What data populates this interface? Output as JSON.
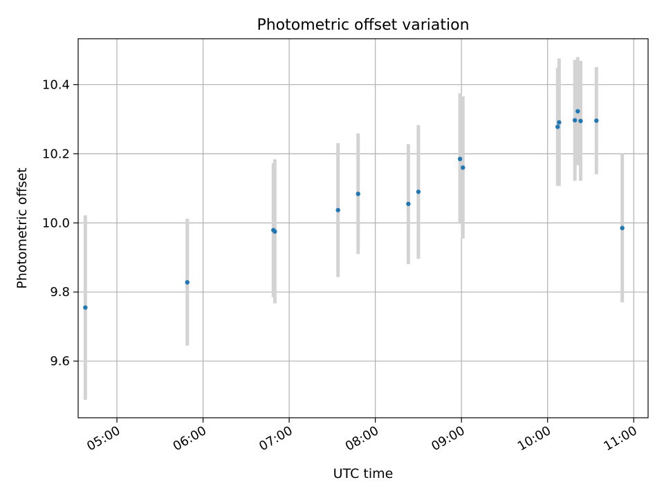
{
  "chart_data": {
    "type": "scatter",
    "title": "Photometric offset variation",
    "xlabel": "UTC time",
    "ylabel": "Photometric offset",
    "x_tick_labels": [
      "05:00",
      "06:00",
      "07:00",
      "08:00",
      "09:00",
      "10:00",
      "11:00"
    ],
    "y_tick_labels": [
      "9.6",
      "9.8",
      "10.0",
      "10.2",
      "10.4"
    ],
    "xlim": [
      "04:33",
      "11:10"
    ],
    "ylim": [
      9.436,
      10.533
    ],
    "grid": true,
    "error_bars": true,
    "points": [
      {
        "x": "04:38",
        "y": 9.755,
        "y_low": 9.488,
        "y_high": 10.022
      },
      {
        "x": "05:49",
        "y": 9.828,
        "y_low": 9.645,
        "y_high": 10.012
      },
      {
        "x": "06:49",
        "y": 9.979,
        "y_low": 9.785,
        "y_high": 10.173
      },
      {
        "x": "06:50",
        "y": 9.975,
        "y_low": 9.767,
        "y_high": 10.184
      },
      {
        "x": "07:34",
        "y": 10.037,
        "y_low": 9.843,
        "y_high": 10.231
      },
      {
        "x": "07:48",
        "y": 10.084,
        "y_low": 9.91,
        "y_high": 10.259
      },
      {
        "x": "08:23",
        "y": 10.055,
        "y_low": 9.881,
        "y_high": 10.228
      },
      {
        "x": "08:30",
        "y": 10.09,
        "y_low": 9.896,
        "y_high": 10.283
      },
      {
        "x": "08:59",
        "y": 10.185,
        "y_low": 10.0,
        "y_high": 10.375
      },
      {
        "x": "09:01",
        "y": 10.16,
        "y_low": 9.955,
        "y_high": 10.366
      },
      {
        "x": "10:07",
        "y": 10.278,
        "y_low": 10.107,
        "y_high": 10.449
      },
      {
        "x": "10:08",
        "y": 10.291,
        "y_low": 10.107,
        "y_high": 10.476
      },
      {
        "x": "10:19",
        "y": 10.297,
        "y_low": 10.122,
        "y_high": 10.472
      },
      {
        "x": "10:21",
        "y": 10.323,
        "y_low": 10.167,
        "y_high": 10.48
      },
      {
        "x": "10:23",
        "y": 10.295,
        "y_low": 10.122,
        "y_high": 10.469
      },
      {
        "x": "10:34",
        "y": 10.296,
        "y_low": 10.141,
        "y_high": 10.451
      },
      {
        "x": "10:52",
        "y": 9.985,
        "y_low": 9.77,
        "y_high": 10.2
      }
    ],
    "colors": {
      "marker": "#1f77b4",
      "error_bar": "#d3d3d3",
      "grid": "#b0b0b0",
      "axes": "#000000"
    }
  }
}
